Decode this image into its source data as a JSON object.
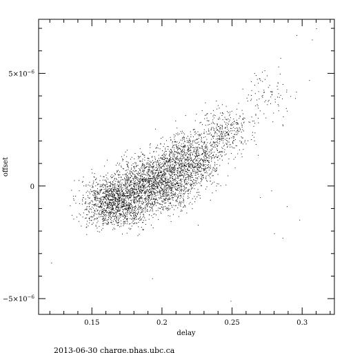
{
  "chart_data": {
    "type": "scatter",
    "title": "",
    "xlabel": "delay",
    "ylabel": "offset",
    "xlim": [
      0.112,
      0.323
    ],
    "ylim": [
      -5.7e-06,
      7.4e-06
    ],
    "x_ticks": [
      {
        "value": 0.15,
        "label": "0.15"
      },
      {
        "value": 0.2,
        "label": "0.2"
      },
      {
        "value": 0.25,
        "label": "0.25"
      },
      {
        "value": 0.3,
        "label": "0.3"
      }
    ],
    "y_ticks": [
      {
        "value": -5e-06,
        "base": "−5×10",
        "exp": "−6"
      },
      {
        "value": 0,
        "base": "0",
        "exp": ""
      },
      {
        "value": 5e-06,
        "base": "5×10",
        "exp": "−6"
      }
    ],
    "grid": false,
    "dense_regions": [
      {
        "x_range": [
          0.135,
          0.2
        ],
        "y_range": [
          -2.2e-06,
          8e-07
        ],
        "points": 1400
      },
      {
        "x_range": [
          0.16,
          0.23
        ],
        "y_range": [
          -1.5e-06,
          1.8e-06
        ],
        "points": 1500
      },
      {
        "x_range": [
          0.19,
          0.25
        ],
        "y_range": [
          -5e-07,
          2.8e-06
        ],
        "points": 1000
      },
      {
        "x_range": [
          0.22,
          0.27
        ],
        "y_range": [
          1e-06,
          3.8e-06
        ],
        "points": 350
      },
      {
        "x_range": [
          0.25,
          0.3
        ],
        "y_range": [
          2.5e-06,
          5.5e-06
        ],
        "points": 90
      }
    ],
    "outliers": [
      {
        "x": 0.121,
        "y": -3.4e-06
      },
      {
        "x": 0.28,
        "y": -2.1e-06
      },
      {
        "x": 0.286,
        "y": -2.3e-06
      },
      {
        "x": 0.289,
        "y": -9e-07
      },
      {
        "x": 0.298,
        "y": -1.5e-06
      },
      {
        "x": 0.249,
        "y": -5.1e-06
      },
      {
        "x": 0.193,
        "y": -4.1e-06
      },
      {
        "x": 0.296,
        "y": 6.7e-06
      },
      {
        "x": 0.31,
        "y": 7e-06
      },
      {
        "x": 0.307,
        "y": 6.5e-06
      },
      {
        "x": 0.305,
        "y": 4.7e-06
      },
      {
        "x": 0.283,
        "y": 5.3e-06
      },
      {
        "x": 0.278,
        "y": -2e-07
      },
      {
        "x": 0.27,
        "y": -5e-07
      }
    ]
  },
  "footer": "2013-06-30 charge.phas.ubc.ca"
}
